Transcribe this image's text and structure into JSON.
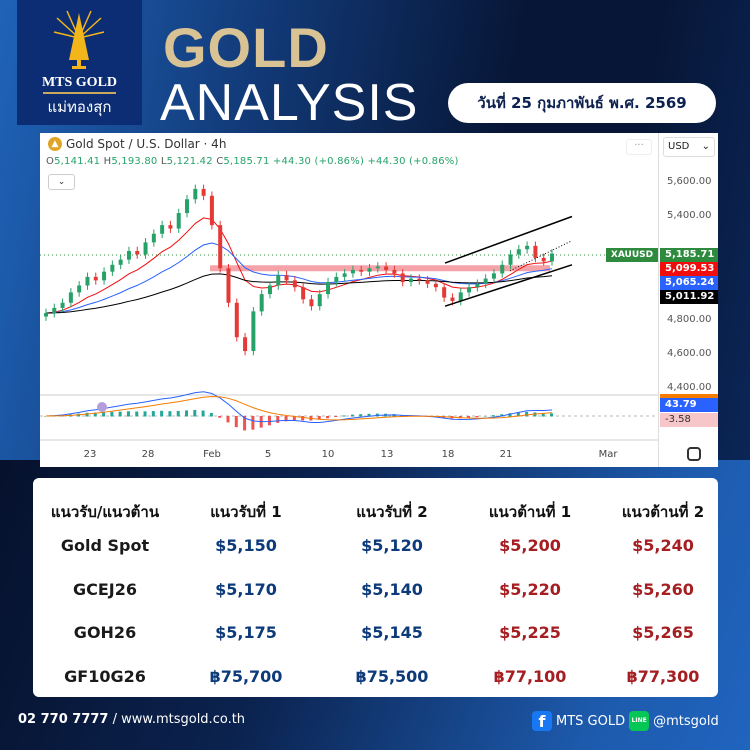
{
  "brand": {
    "name_en": "MTS GOLD",
    "name_th": "แม่ทองสุก"
  },
  "header": {
    "title_line1": "GOLD",
    "title_line2": "ANALYSIS",
    "date": "วันที่ 25 กุมภาพันธ์ พ.ศ. 2569"
  },
  "chart_data": {
    "type": "candlestick",
    "title": "Gold Spot / U.S. Dollar · 4h",
    "ohlc_readout": {
      "open": "5,141.41",
      "high": "5,193.80",
      "low": "5,121.42",
      "close": "5,185.71",
      "change": "+44.30 (+0.86%)",
      "change2": "+44.30 (+0.86%)"
    },
    "currency": "USD",
    "y_ticks": [
      "5,600.00",
      "5,400.00",
      "4,800.00",
      "4,600.00",
      "4,400.00"
    ],
    "ylim": [
      4380,
      5700
    ],
    "x_ticks": [
      "23",
      "28",
      "Feb",
      "5",
      "10",
      "13",
      "18",
      "21",
      "Mar"
    ],
    "symbol_label": "XAUUSD",
    "price_labels": [
      {
        "value": "5,185.71",
        "color": "#2e8b3e"
      },
      {
        "value": "5,099.53",
        "color": "#f20d0d"
      },
      {
        "value": "5,065.24",
        "color": "#2962ff"
      },
      {
        "value": "5,011.92",
        "color": "#000000"
      }
    ],
    "macd_labels": [
      {
        "value": "43.79",
        "color": "#2962ff"
      },
      {
        "value": "-3.58",
        "color": "#f7c6c9"
      }
    ],
    "closes": [
      4840,
      4870,
      4900,
      4960,
      5000,
      5050,
      5030,
      5080,
      5120,
      5150,
      5200,
      5180,
      5250,
      5300,
      5350,
      5330,
      5420,
      5500,
      5560,
      5520,
      5350,
      5100,
      4900,
      4700,
      4620,
      4850,
      4950,
      5000,
      5060,
      5030,
      4990,
      4920,
      4880,
      4950,
      5020,
      5050,
      5070,
      5090,
      5080,
      5100,
      5110,
      5090,
      5070,
      5020,
      5040,
      5030,
      5010,
      4990,
      4930,
      4910,
      4960,
      4990,
      5010,
      5040,
      5070,
      5120,
      5180,
      5210,
      5230,
      5160,
      5140,
      5185
    ],
    "resistance_zone": 5100,
    "channel": {
      "upper": [
        5130,
        5400
      ],
      "lower": [
        4880,
        5120
      ]
    }
  },
  "table": {
    "headers": [
      "แนวรับ/แนวต้าน",
      "แนวรับที่ 1",
      "แนวรับที่ 2",
      "แนวต้านที่ 1",
      "แนวต้านที่ 2"
    ],
    "rows": [
      [
        "Gold Spot",
        "$5,150",
        "$5,120",
        "$5,200",
        "$5,240"
      ],
      [
        "GCEJ26",
        "$5,170",
        "$5,140",
        "$5,220",
        "$5,260"
      ],
      [
        "GOH26",
        "$5,175",
        "$5,145",
        "$5,225",
        "$5,265"
      ],
      [
        "GF10G26",
        "฿75,700",
        "฿75,500",
        "฿77,100",
        "฿77,300"
      ]
    ]
  },
  "footer": {
    "phone": "02 770 7777",
    "website": "/ www.mtsgold.co.th",
    "facebook": "MTS GOLD",
    "line": "@mtsgold",
    "line_icon_text": "LINE"
  }
}
